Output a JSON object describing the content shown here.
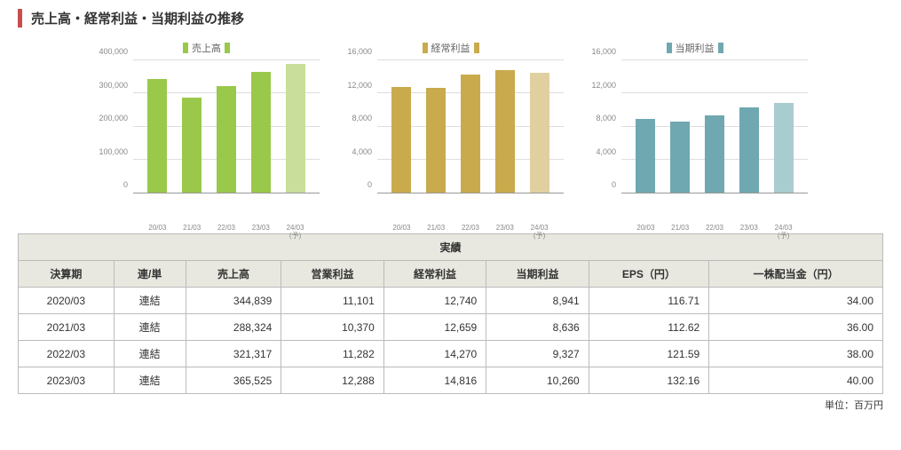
{
  "title": "売上高・経常利益・当期利益の推移",
  "unit_note": "単位：百万円",
  "charts": [
    {
      "key": "sales",
      "legend": "売上高",
      "swatch_color": "#9ac84a",
      "ymax": 400000,
      "ytick_step": 100000,
      "yticks": [
        "0",
        "100,000",
        "200,000",
        "300,000",
        "400,000"
      ],
      "xlabels": [
        "20/03",
        "21/03",
        "22/03",
        "23/03",
        "24/03"
      ],
      "xsub": [
        "",
        "",
        "",
        "",
        "(予)"
      ],
      "values": [
        344839,
        288324,
        321317,
        365525,
        390000
      ],
      "bar_colors": [
        "#9ac84a",
        "#9ac84a",
        "#9ac84a",
        "#9ac84a",
        "#c8de9a"
      ],
      "grid_color": "#dddddd"
    },
    {
      "key": "ordinary",
      "legend": "経常利益",
      "swatch_color": "#c9aa4d",
      "ymax": 16000,
      "ytick_step": 4000,
      "yticks": [
        "0",
        "4,000",
        "8,000",
        "12,000",
        "16,000"
      ],
      "xlabels": [
        "20/03",
        "21/03",
        "22/03",
        "23/03",
        "24/03"
      ],
      "xsub": [
        "",
        "",
        "",
        "",
        "(予)"
      ],
      "values": [
        12740,
        12659,
        14270,
        14816,
        14500
      ],
      "bar_colors": [
        "#c9aa4d",
        "#c9aa4d",
        "#c9aa4d",
        "#c9aa4d",
        "#e0d0a0"
      ],
      "grid_color": "#dddddd"
    },
    {
      "key": "net",
      "legend": "当期利益",
      "swatch_color": "#6fa8b0",
      "ymax": 16000,
      "ytick_step": 4000,
      "yticks": [
        "0",
        "4,000",
        "8,000",
        "12,000",
        "16,000"
      ],
      "xlabels": [
        "20/03",
        "21/03",
        "22/03",
        "23/03",
        "24/03"
      ],
      "xsub": [
        "",
        "",
        "",
        "",
        "(予)"
      ],
      "values": [
        8941,
        8636,
        9327,
        10260,
        10800
      ],
      "bar_colors": [
        "#6fa8b0",
        "#6fa8b0",
        "#6fa8b0",
        "#6fa8b0",
        "#a8ccd0"
      ],
      "grid_color": "#dddddd"
    }
  ],
  "table": {
    "super_header": "実績",
    "columns": [
      "決算期",
      "連/単",
      "売上高",
      "営業利益",
      "経常利益",
      "当期利益",
      "EPS（円）",
      "一株配当金（円）"
    ],
    "rows": [
      [
        "2020/03",
        "連結",
        "344,839",
        "11,101",
        "12,740",
        "8,941",
        "116.71",
        "34.00"
      ],
      [
        "2021/03",
        "連結",
        "288,324",
        "10,370",
        "12,659",
        "8,636",
        "112.62",
        "36.00"
      ],
      [
        "2022/03",
        "連結",
        "321,317",
        "11,282",
        "14,270",
        "9,327",
        "121.59",
        "38.00"
      ],
      [
        "2023/03",
        "連結",
        "365,525",
        "12,288",
        "14,816",
        "10,260",
        "132.16",
        "40.00"
      ]
    ],
    "center_cols": [
      0,
      1
    ]
  }
}
